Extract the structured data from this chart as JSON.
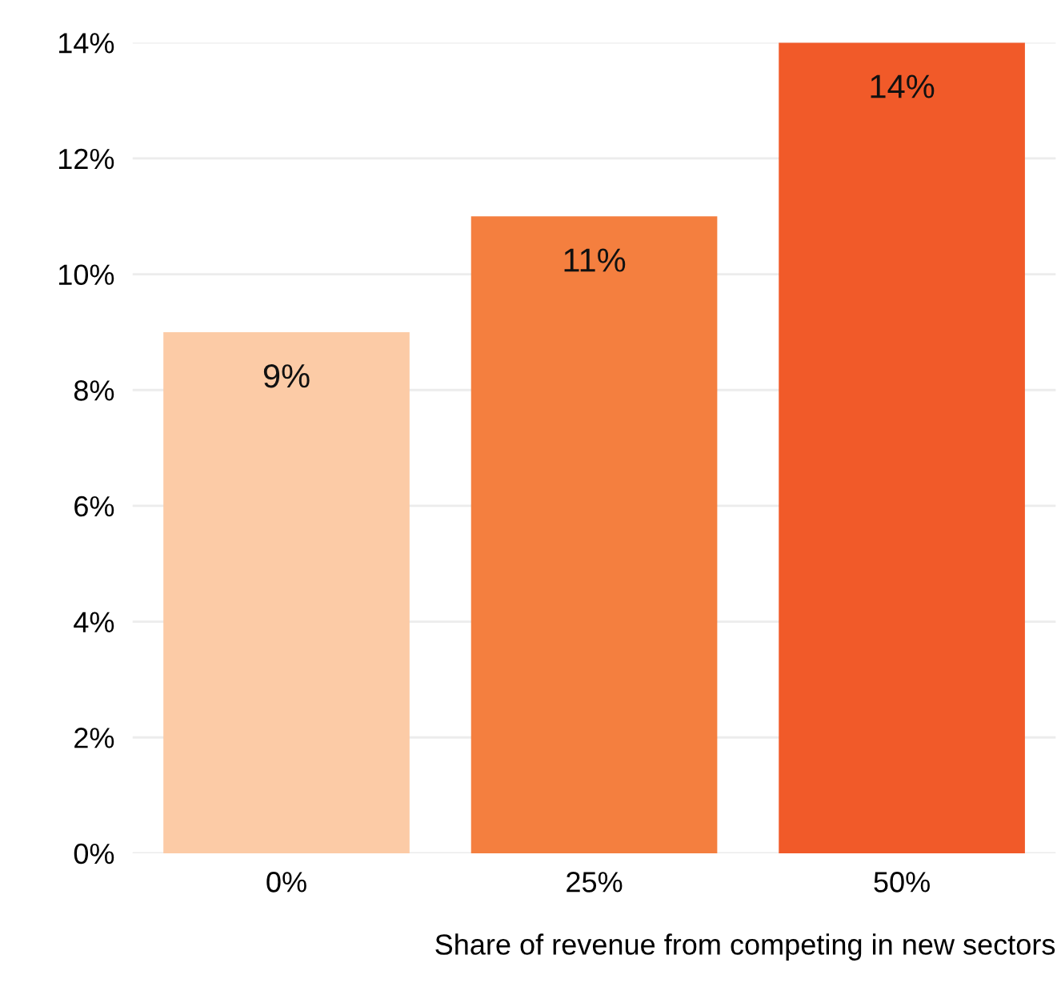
{
  "chart_data": {
    "type": "bar",
    "xlabel": "Share of revenue from competing in new sectors",
    "categories": [
      "0%",
      "25%",
      "50%"
    ],
    "values": [
      9,
      11,
      14
    ],
    "colors": [
      "#fccba6",
      "#f47f3f",
      "#f15a29"
    ],
    "value_labels": [
      "9%",
      "11%",
      "14%"
    ],
    "ylim": [
      0,
      14
    ],
    "yticks": [
      {
        "value": 0,
        "label": "0%"
      },
      {
        "value": 2,
        "label": "2%"
      },
      {
        "value": 4,
        "label": "4%"
      },
      {
        "value": 6,
        "label": "6%"
      },
      {
        "value": 8,
        "label": "8%"
      },
      {
        "value": 10,
        "label": "10%"
      },
      {
        "value": 12,
        "label": "12%"
      },
      {
        "value": 14,
        "label": "14%"
      }
    ],
    "grid": "y",
    "legend": false
  }
}
